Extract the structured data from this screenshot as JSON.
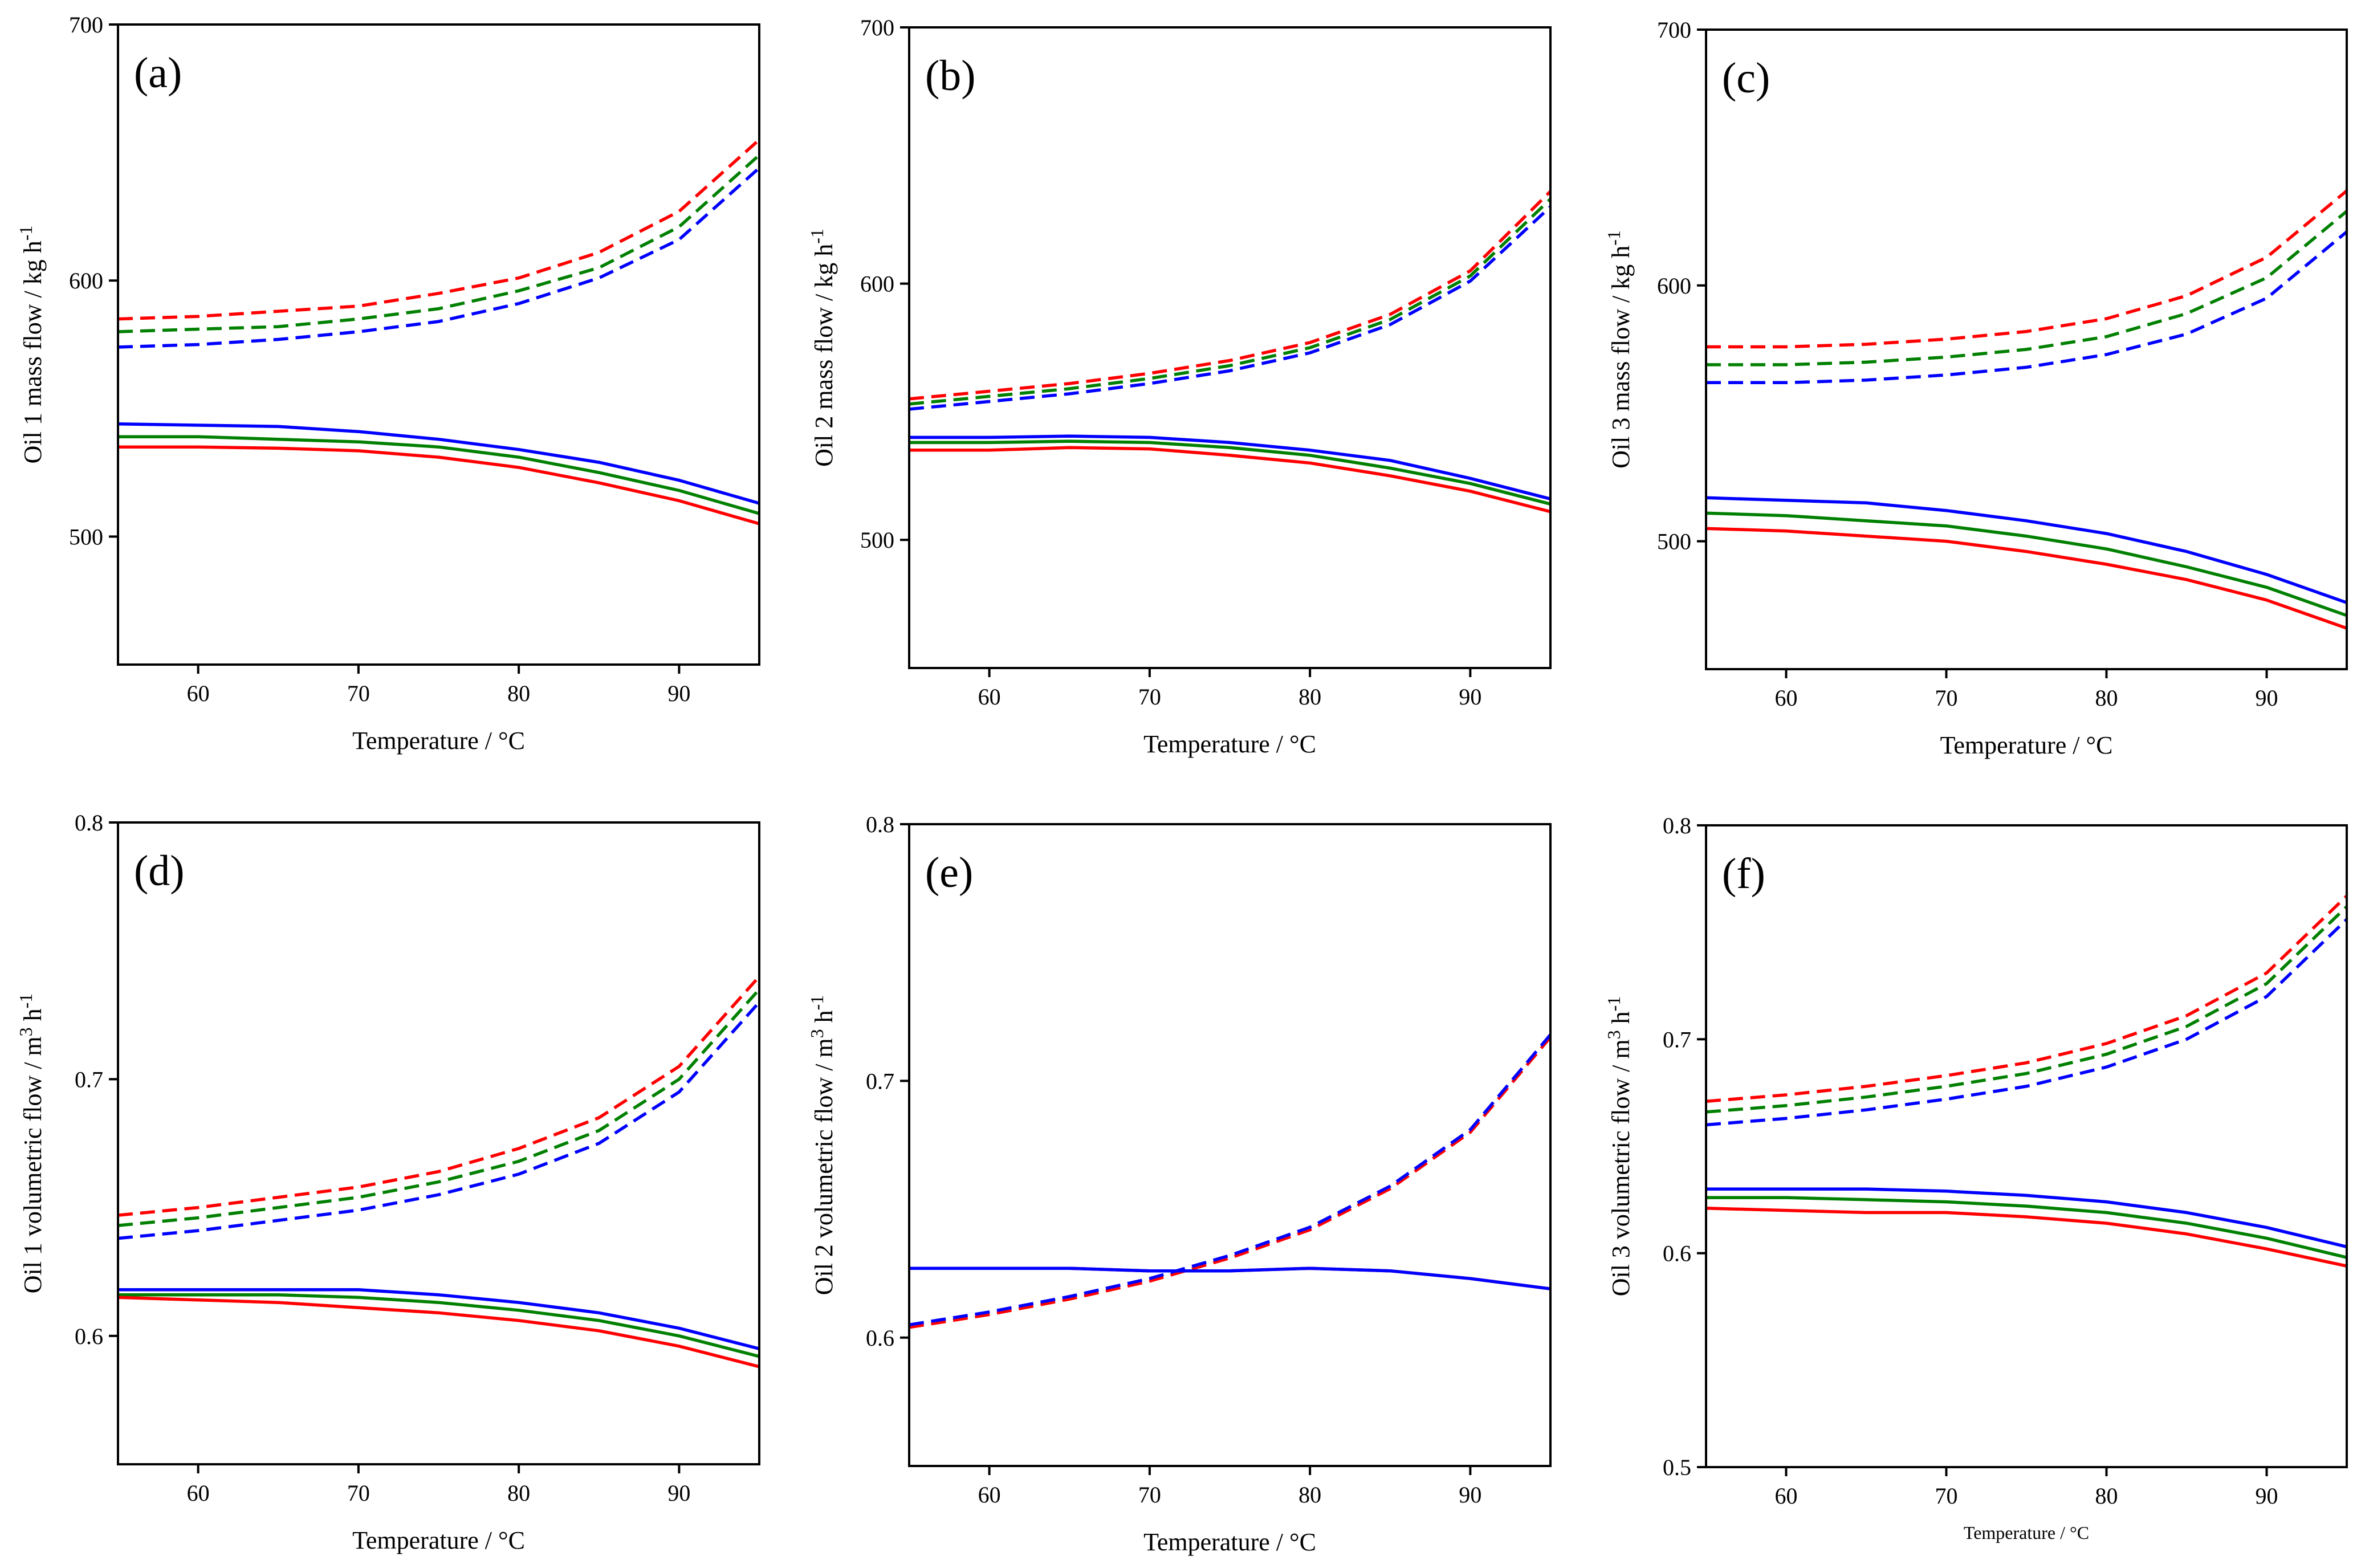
{
  "chart_data": [
    {
      "type": "line",
      "panel_label": "(a)",
      "xlabel": "Temperature / °C",
      "ylabel_main": "Oil 1 mass flow / kg h",
      "ylabel_sup": "-1",
      "xlim": [
        55,
        95
      ],
      "ylim": [
        450,
        700
      ],
      "xticks": [
        60,
        70,
        80,
        90
      ],
      "yticks": [
        500,
        600,
        700
      ],
      "x": [
        55,
        60,
        65,
        70,
        75,
        80,
        85,
        90,
        95
      ],
      "series": [
        {
          "name": "red-dashed",
          "color": "#ff0000",
          "dashed": true,
          "values": [
            585,
            586,
            588,
            590,
            595,
            601,
            611,
            627,
            655
          ]
        },
        {
          "name": "green-dashed",
          "color": "#008000",
          "dashed": true,
          "values": [
            580,
            581,
            582,
            585,
            589,
            596,
            605,
            621,
            649
          ]
        },
        {
          "name": "blue-dashed",
          "color": "#0000ff",
          "dashed": true,
          "values": [
            574,
            575,
            577,
            580,
            584,
            591,
            601,
            616,
            644
          ]
        },
        {
          "name": "blue-solid",
          "color": "#0000ff",
          "dashed": false,
          "values": [
            544,
            543.5,
            543,
            541,
            538,
            534,
            529,
            522,
            513
          ]
        },
        {
          "name": "green-solid",
          "color": "#008000",
          "dashed": false,
          "values": [
            539,
            539,
            538,
            537,
            535,
            531,
            525,
            518,
            509
          ]
        },
        {
          "name": "red-solid",
          "color": "#ff0000",
          "dashed": false,
          "values": [
            535,
            535,
            534.5,
            533.5,
            531,
            527,
            521,
            514,
            505
          ]
        }
      ]
    },
    {
      "type": "line",
      "panel_label": "(b)",
      "xlabel": "Temperature / °C",
      "ylabel_main": "Oil 2 mass flow / kg h",
      "ylabel_sup": "-1",
      "xlim": [
        55,
        95
      ],
      "ylim": [
        450,
        700
      ],
      "xticks": [
        60,
        70,
        80,
        90
      ],
      "yticks": [
        500,
        600,
        700
      ],
      "x": [
        55,
        60,
        65,
        70,
        75,
        80,
        85,
        90,
        95
      ],
      "series": [
        {
          "name": "red-dashed",
          "color": "#ff0000",
          "dashed": true,
          "values": [
            555,
            558,
            561,
            565,
            570,
            577,
            588,
            605,
            636
          ]
        },
        {
          "name": "green-dashed",
          "color": "#008000",
          "dashed": true,
          "values": [
            553,
            556,
            559,
            563,
            568,
            575,
            586,
            603,
            633
          ]
        },
        {
          "name": "blue-dashed",
          "color": "#0000ff",
          "dashed": true,
          "values": [
            551,
            554,
            557,
            561,
            566,
            573,
            584,
            601,
            630
          ]
        },
        {
          "name": "blue-solid",
          "color": "#0000ff",
          "dashed": false,
          "values": [
            540,
            540,
            540.5,
            540,
            538,
            535,
            531,
            524,
            516
          ]
        },
        {
          "name": "green-solid",
          "color": "#008000",
          "dashed": false,
          "values": [
            538,
            538,
            538.5,
            538,
            536,
            533,
            528,
            522,
            514
          ]
        },
        {
          "name": "red-solid",
          "color": "#ff0000",
          "dashed": false,
          "values": [
            535,
            535,
            536,
            535.5,
            533,
            530,
            525,
            519,
            511
          ]
        }
      ]
    },
    {
      "type": "line",
      "panel_label": "(c)",
      "xlabel": "Temperature / °C",
      "ylabel_main": "Oil 3 mass flow / kg h",
      "ylabel_sup": "-1",
      "xlim": [
        55,
        95
      ],
      "ylim": [
        450,
        700
      ],
      "xticks": [
        60,
        70,
        80,
        90
      ],
      "yticks": [
        500,
        600,
        700
      ],
      "x": [
        55,
        60,
        65,
        70,
        75,
        80,
        85,
        90,
        95
      ],
      "series": [
        {
          "name": "red-dashed",
          "color": "#ff0000",
          "dashed": true,
          "values": [
            576,
            576,
            577,
            579,
            582,
            587,
            596,
            611,
            637
          ]
        },
        {
          "name": "green-dashed",
          "color": "#008000",
          "dashed": true,
          "values": [
            569,
            569,
            570,
            572,
            575,
            580,
            589,
            603,
            629
          ]
        },
        {
          "name": "blue-dashed",
          "color": "#0000ff",
          "dashed": true,
          "values": [
            562,
            562,
            563,
            565,
            568,
            573,
            581,
            595,
            621
          ]
        },
        {
          "name": "blue-solid",
          "color": "#0000ff",
          "dashed": false,
          "values": [
            517,
            516,
            515,
            512,
            508,
            503,
            496,
            487,
            476
          ]
        },
        {
          "name": "green-solid",
          "color": "#008000",
          "dashed": false,
          "values": [
            511,
            510,
            508,
            506,
            502,
            497,
            490,
            482,
            471
          ]
        },
        {
          "name": "red-solid",
          "color": "#ff0000",
          "dashed": false,
          "values": [
            505,
            504,
            502,
            500,
            496,
            491,
            485,
            477,
            466
          ]
        }
      ]
    },
    {
      "type": "line",
      "panel_label": "(d)",
      "xlabel": "Temperature / °C",
      "ylabel_main": "Oil 1 volumetric flow / m",
      "ylabel_sup": "3",
      "ylabel_tail": " h",
      "ylabel_tail_sup": "-1",
      "xlim": [
        55,
        95
      ],
      "ylim": [
        0.55,
        0.8
      ],
      "xticks": [
        60,
        70,
        80,
        90
      ],
      "yticks": [
        0.6,
        0.7,
        0.8
      ],
      "ytick_labels": [
        "0.6",
        "0.7",
        "0.8"
      ],
      "x": [
        55,
        60,
        65,
        70,
        75,
        80,
        85,
        90,
        95
      ],
      "series": [
        {
          "name": "red-dashed",
          "color": "#ff0000",
          "dashed": true,
          "values": [
            0.647,
            0.65,
            0.654,
            0.658,
            0.664,
            0.673,
            0.685,
            0.705,
            0.74
          ]
        },
        {
          "name": "green-dashed",
          "color": "#008000",
          "dashed": true,
          "values": [
            0.643,
            0.646,
            0.65,
            0.654,
            0.66,
            0.668,
            0.68,
            0.7,
            0.735
          ]
        },
        {
          "name": "blue-dashed",
          "color": "#0000ff",
          "dashed": true,
          "values": [
            0.638,
            0.641,
            0.645,
            0.649,
            0.655,
            0.663,
            0.675,
            0.695,
            0.73
          ]
        },
        {
          "name": "blue-solid",
          "color": "#0000ff",
          "dashed": false,
          "values": [
            0.618,
            0.618,
            0.618,
            0.618,
            0.616,
            0.613,
            0.609,
            0.603,
            0.595
          ]
        },
        {
          "name": "green-solid",
          "color": "#008000",
          "dashed": false,
          "values": [
            0.616,
            0.616,
            0.616,
            0.615,
            0.613,
            0.61,
            0.606,
            0.6,
            0.592
          ]
        },
        {
          "name": "red-solid",
          "color": "#ff0000",
          "dashed": false,
          "values": [
            0.615,
            0.614,
            0.613,
            0.611,
            0.609,
            0.606,
            0.602,
            0.596,
            0.588
          ]
        }
      ]
    },
    {
      "type": "line",
      "panel_label": "(e)",
      "xlabel": "Temperature / °C",
      "ylabel_main": "Oil 2 volumetric flow / m",
      "ylabel_sup": "3",
      "ylabel_tail": " h",
      "ylabel_tail_sup": "-1",
      "xlim": [
        55,
        95
      ],
      "ylim": [
        0.55,
        0.8
      ],
      "xticks": [
        60,
        70,
        80,
        90
      ],
      "yticks": [
        0.6,
        0.7,
        0.8
      ],
      "ytick_labels": [
        "0.6",
        "0.7",
        "0.8"
      ],
      "x": [
        55,
        60,
        65,
        70,
        75,
        80,
        85,
        90,
        95
      ],
      "series": [
        {
          "name": "red-dashed",
          "color": "#ff0000",
          "dashed": true,
          "values": [
            0.604,
            0.609,
            0.615,
            0.622,
            0.631,
            0.642,
            0.658,
            0.68,
            0.717
          ]
        },
        {
          "name": "blue-dashed",
          "color": "#0000ff",
          "dashed": true,
          "values": [
            0.605,
            0.61,
            0.616,
            0.623,
            0.632,
            0.643,
            0.659,
            0.681,
            0.718
          ]
        },
        {
          "name": "red-solid",
          "color": "#ff0000",
          "dashed": false,
          "values": [
            0.627,
            0.627,
            0.627,
            0.626,
            0.626,
            0.627,
            0.626,
            0.623,
            0.619
          ]
        },
        {
          "name": "blue-solid",
          "color": "#0000ff",
          "dashed": false,
          "values": [
            0.627,
            0.627,
            0.627,
            0.626,
            0.626,
            0.627,
            0.626,
            0.623,
            0.619
          ]
        }
      ]
    },
    {
      "type": "line",
      "panel_label": "(f)",
      "xlabel": "Temperature / °C",
      "xlabel_small": true,
      "ylabel_main": "Oil 3 volumetric flow / m",
      "ylabel_sup": "3",
      "ylabel_tail": " h",
      "ylabel_tail_sup": "-1",
      "xlim": [
        55,
        95
      ],
      "ylim": [
        0.5,
        0.8
      ],
      "xticks": [
        60,
        70,
        80,
        90
      ],
      "yticks": [
        0.5,
        0.6,
        0.7,
        0.8
      ],
      "ytick_labels": [
        "0.5",
        "0.6",
        "0.7",
        "0.8"
      ],
      "x": [
        55,
        60,
        65,
        70,
        75,
        80,
        85,
        90,
        95
      ],
      "series": [
        {
          "name": "red-dashed",
          "color": "#ff0000",
          "dashed": true,
          "values": [
            0.671,
            0.674,
            0.678,
            0.683,
            0.689,
            0.698,
            0.711,
            0.731,
            0.767
          ]
        },
        {
          "name": "green-dashed",
          "color": "#008000",
          "dashed": true,
          "values": [
            0.666,
            0.669,
            0.673,
            0.678,
            0.684,
            0.693,
            0.706,
            0.726,
            0.762
          ]
        },
        {
          "name": "blue-dashed",
          "color": "#0000ff",
          "dashed": true,
          "values": [
            0.66,
            0.663,
            0.667,
            0.672,
            0.678,
            0.687,
            0.7,
            0.72,
            0.756
          ]
        },
        {
          "name": "blue-solid",
          "color": "#0000ff",
          "dashed": false,
          "values": [
            0.63,
            0.63,
            0.63,
            0.629,
            0.627,
            0.624,
            0.619,
            0.612,
            0.603
          ]
        },
        {
          "name": "green-solid",
          "color": "#008000",
          "dashed": false,
          "values": [
            0.626,
            0.626,
            0.625,
            0.624,
            0.622,
            0.619,
            0.614,
            0.607,
            0.598
          ]
        },
        {
          "name": "red-solid",
          "color": "#ff0000",
          "dashed": false,
          "values": [
            0.621,
            0.62,
            0.619,
            0.619,
            0.617,
            0.614,
            0.609,
            0.602,
            0.594
          ]
        }
      ]
    }
  ]
}
